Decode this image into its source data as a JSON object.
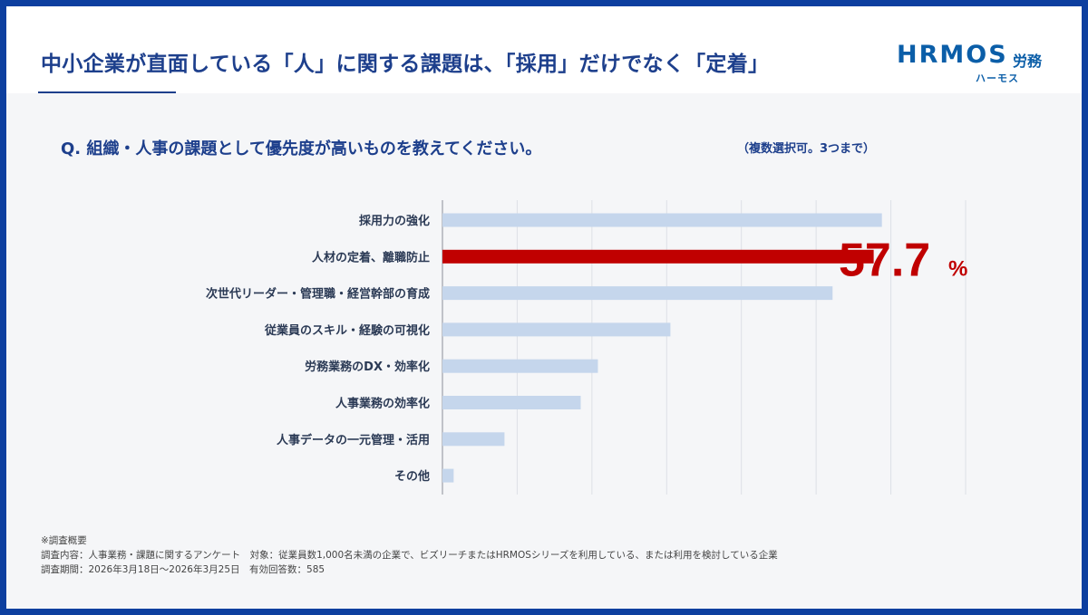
{
  "header": {
    "title": "中小企業が直面している「人」に関する課題は、「採用」だけでなく「定着」",
    "logo_main": "HRMOS",
    "logo_sub": "労務",
    "logo_kana": "ハーモス"
  },
  "question": {
    "text": "Q. 組織・人事の課題として優先度が高いものを教えてください。",
    "note": "（複数選択可。3つまで）"
  },
  "chart_data": {
    "type": "bar",
    "orientation": "horizontal",
    "categories": [
      "採用力の強化",
      "人材の定着、離職防止",
      "次世代リーダー・管理職・経営幹部の育成",
      "従業員のスキル・経験の可視化",
      "労務業務のDX・効率化",
      "人事業務の効率化",
      "人事データの一元管理・活用",
      "その他"
    ],
    "values": [
      58.8,
      57.7,
      52.2,
      30.5,
      20.8,
      18.5,
      8.3,
      1.5
    ],
    "xlim": [
      0,
      70
    ],
    "gridlines": [
      0,
      10,
      20,
      30,
      40,
      50,
      60,
      70
    ],
    "highlight_index": 1,
    "highlight_label_value": "57.7",
    "highlight_label_unit": "%",
    "colors": {
      "default": "#c5d6ec",
      "highlight": "#c00000",
      "grid": "#dde0e6",
      "axis": "#8a8f99"
    }
  },
  "notes": {
    "heading": "※調査概要",
    "line1": "調査内容：人事業務・課題に関するアンケート　対象：従業員数1,000名未満の企業で、ビズリーチまたはHRMOSシリーズを利用している、または利用を検討している企業",
    "line2": "調査期間：2026年3月18日～2026年3月25日　有効回答数：585"
  },
  "colors": {
    "navy": "#1d3f8c",
    "frame": "#0d3f9f",
    "logo": "#0b5ea8"
  }
}
